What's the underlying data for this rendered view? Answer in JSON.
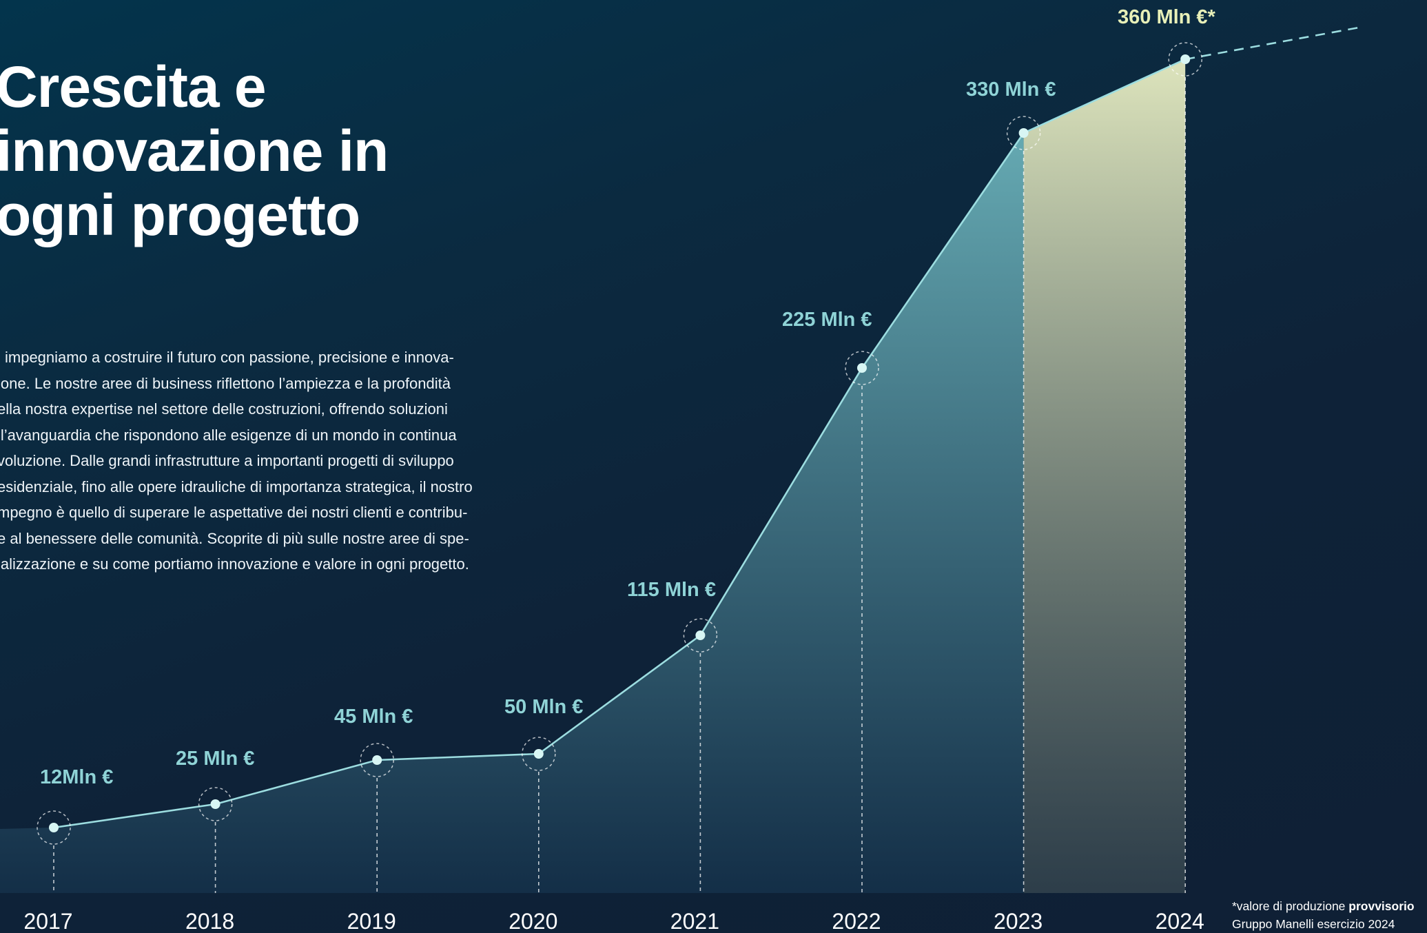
{
  "page": {
    "title_lines": [
      "Crescita e",
      "innovazione in",
      "ogni progetto"
    ],
    "body": "i impegniamo a costruire il futuro con passione, precisione e innova-\nione. Le nostre aree di business riflettono l’ampiezza e la profondità\nella nostra expertise nel settore delle costruzioni, offrendo soluzioni\nll’avanguardia che rispondono alle esigenze di un mondo in continua\nvoluzione. Dalle grandi infrastrutture a importanti progetti di sviluppo\nesidenziale, fino alle opere idrauliche di importanza strategica, il nostro\nmpegno è quello di superare le aspettative dei nostri clienti e contribu-\ne al benessere delle comunità. Scoprite di più sulle nostre aree di spe-\nializzazione e su come portiamo innovazione e valore in ogni progetto.",
    "footnote_line1_prefix": "*valore di produzione ",
    "footnote_line1_bold": "provvisorio",
    "footnote_line2": "Gruppo Manelli esercizio 2024"
  },
  "colors": {
    "line": "#9cdde0",
    "label": "#8fd3d6",
    "highlight_label": "#e8f0b8",
    "fill_top": "#6ab0b8",
    "fill_bottom": "#143049",
    "highlight_top": "#dde4bc",
    "highlight_bottom": "#3a4a52"
  },
  "chart_data": {
    "type": "area",
    "x": [
      2017,
      2018,
      2019,
      2020,
      2021,
      2022,
      2023,
      2024
    ],
    "values": [
      12,
      25,
      45,
      50,
      115,
      225,
      330,
      360
    ],
    "value_labels": [
      "12Mln €",
      "25 Mln €",
      "45 Mln €",
      "50 Mln €",
      "115 Mln €",
      "225 Mln €",
      "330 Mln €",
      "360 Mln €*"
    ],
    "tick_labels": [
      "2017",
      "2018",
      "2019",
      "2020",
      "2021",
      "2022",
      "2023",
      "2024"
    ],
    "unit": "Mln €",
    "highlight_range": [
      2023,
      2024
    ],
    "projection": "dashed line continuing after 2024",
    "xlabel": "",
    "ylabel": ""
  }
}
